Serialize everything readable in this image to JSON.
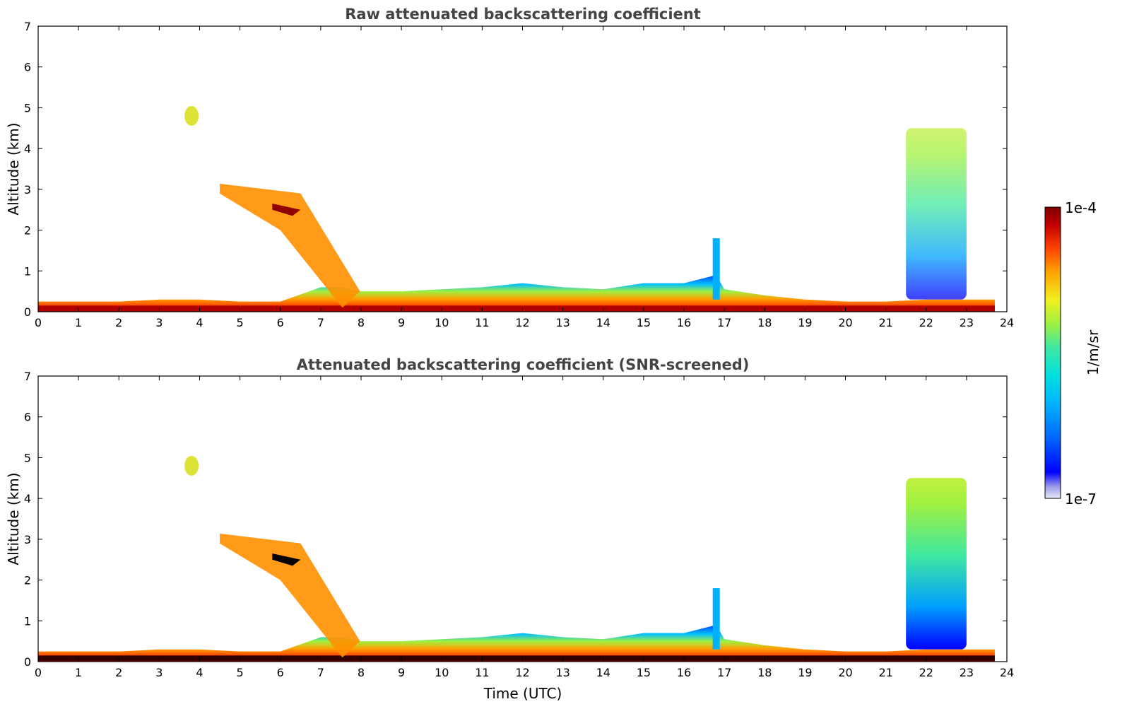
{
  "chart_data": [
    {
      "type": "heatmap",
      "title": "Raw attenuated backscattering coefficient",
      "xlabel": "",
      "ylabel": "Altitude (km)",
      "xlim": [
        0,
        24
      ],
      "ylim": [
        0,
        7
      ],
      "xticks": [
        "0",
        "1",
        "2",
        "3",
        "4",
        "5",
        "6",
        "7",
        "8",
        "9",
        "10",
        "11",
        "12",
        "13",
        "14",
        "15",
        "16",
        "17",
        "18",
        "19",
        "20",
        "21",
        "22",
        "23",
        "24"
      ],
      "yticks": [
        "0",
        "1",
        "2",
        "3",
        "4",
        "5",
        "6",
        "7"
      ],
      "screened": false,
      "boundary_layer_top_km": {
        "times": [
          0,
          1,
          2,
          3,
          4,
          5,
          6,
          7,
          7.5,
          8,
          9,
          10,
          11,
          12,
          13,
          14,
          15,
          16,
          16.8,
          17,
          18,
          19,
          20,
          21,
          22,
          23,
          23.7
        ],
        "values": [
          0.25,
          0.25,
          0.25,
          0.3,
          0.3,
          0.25,
          0.25,
          0.6,
          0.6,
          0.5,
          0.5,
          0.55,
          0.6,
          0.7,
          0.6,
          0.55,
          0.7,
          0.7,
          0.9,
          0.55,
          0.4,
          0.3,
          0.25,
          0.25,
          0.3,
          0.3,
          0.3
        ]
      },
      "features": [
        {
          "label": "elevated aerosol plume descending",
          "start_time": 4.5,
          "end_time": 7.8,
          "start_alt_km": 3.0,
          "end_alt_km": 0.5
        },
        {
          "label": "high aerosol layer",
          "time": 3.8,
          "alt_km": 4.8
        },
        {
          "label": "convective column",
          "time": 16.8,
          "top_km": 1.8
        },
        {
          "label": "cloud / high signal column",
          "start_time": 21.5,
          "end_time": 23.0,
          "top_km": 4.5
        }
      ]
    },
    {
      "type": "heatmap",
      "title": "Attenuated backscattering coefficient (SNR-screened)",
      "xlabel": "Time (UTC)",
      "ylabel": "Altitude (km)",
      "xlim": [
        0,
        24
      ],
      "ylim": [
        0,
        7
      ],
      "xticks": [
        "0",
        "1",
        "2",
        "3",
        "4",
        "5",
        "6",
        "7",
        "8",
        "9",
        "10",
        "11",
        "12",
        "13",
        "14",
        "15",
        "16",
        "17",
        "18",
        "19",
        "20",
        "21",
        "22",
        "23",
        "24"
      ],
      "yticks": [
        "0",
        "1",
        "2",
        "3",
        "4",
        "5",
        "6",
        "7"
      ],
      "screened": true
    }
  ],
  "colorbar": {
    "max_label": "1e-4",
    "min_label": "1e-7",
    "unit_label": "1/m/sr",
    "colormap": [
      "#e8e8f8",
      "#9a9ae8",
      "#0000ff",
      "#0060ff",
      "#00b0ff",
      "#00e0e0",
      "#40e8a0",
      "#a0f040",
      "#f0f020",
      "#ffa000",
      "#ff4000",
      "#c00000",
      "#800000"
    ]
  }
}
